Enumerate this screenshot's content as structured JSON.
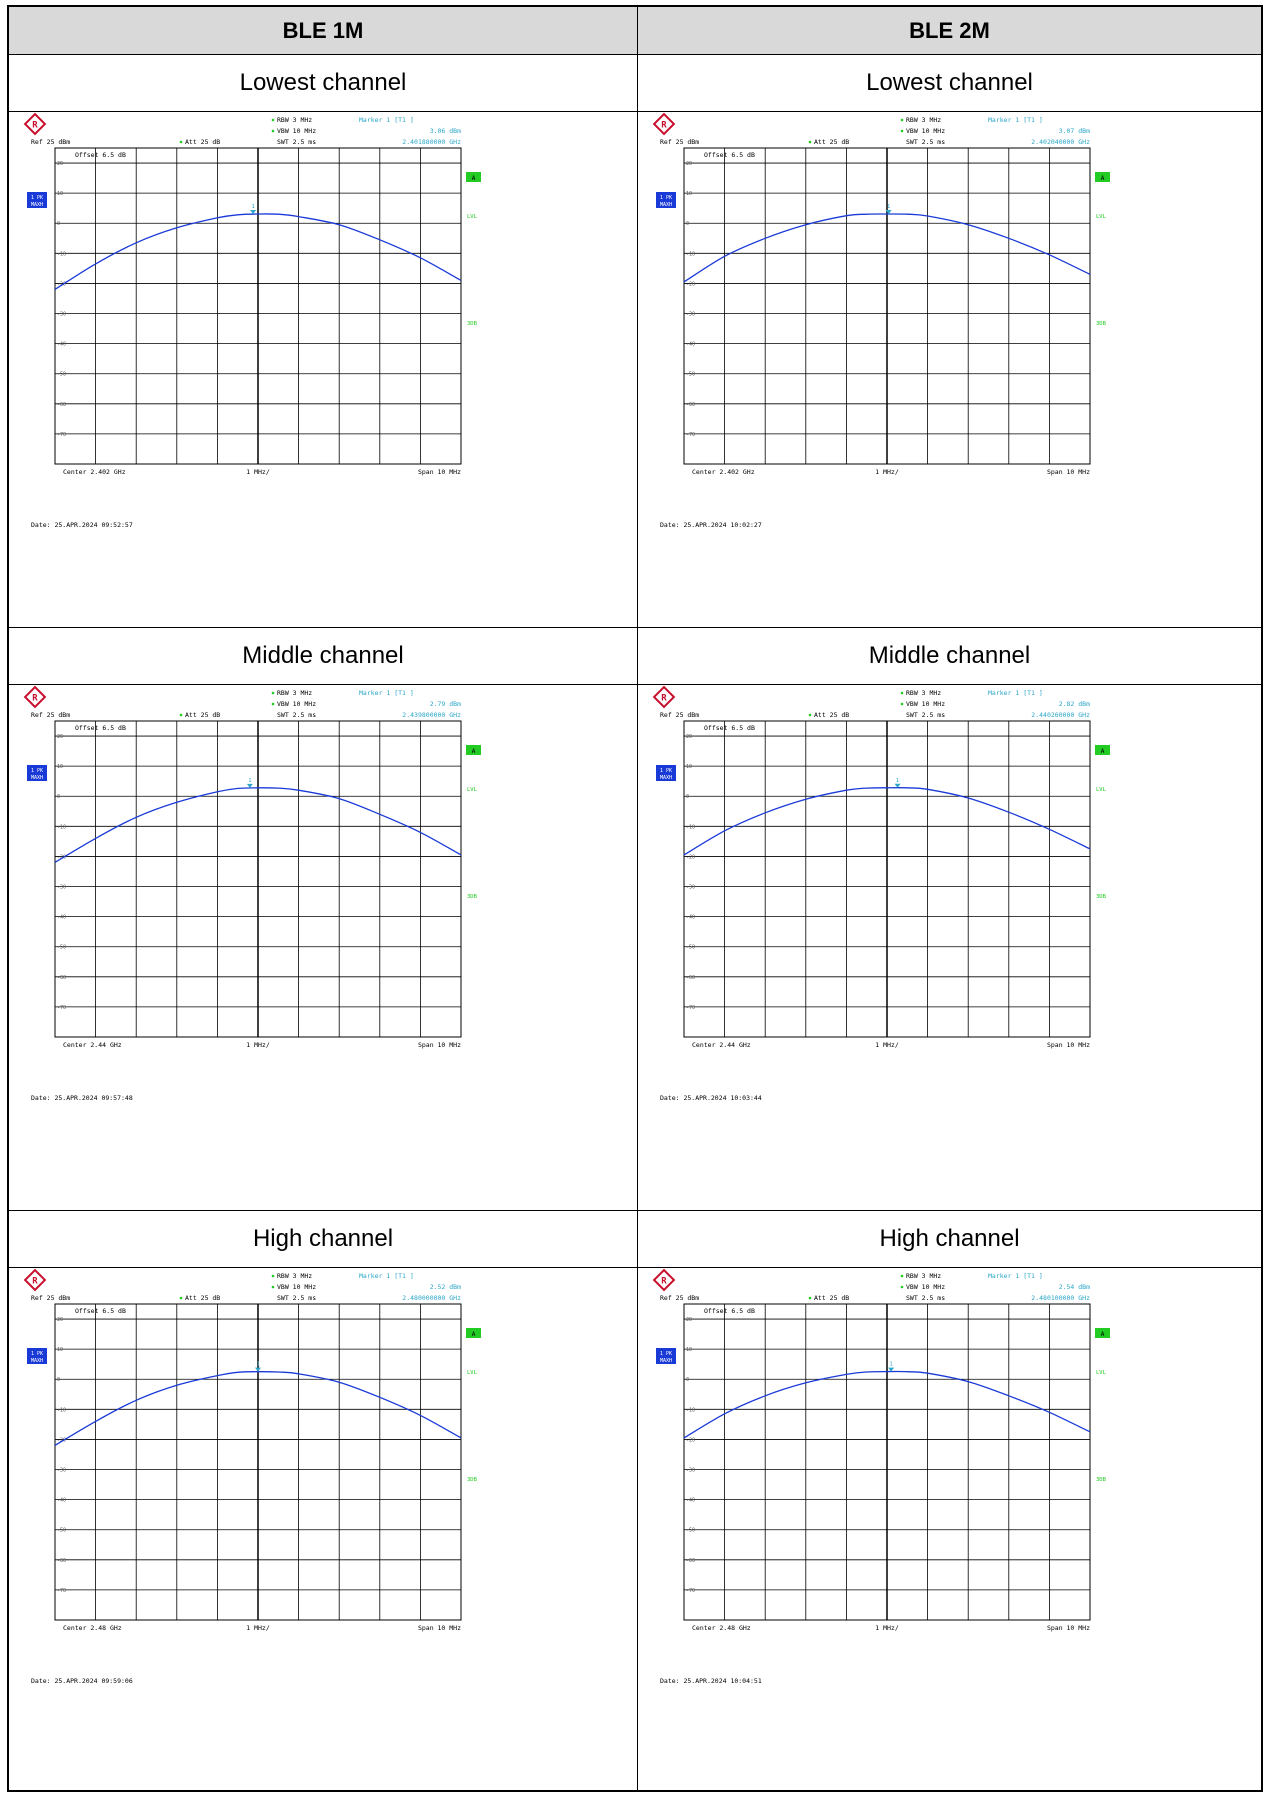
{
  "columns": [
    {
      "header": "BLE 1M"
    },
    {
      "header": "BLE 2M"
    }
  ],
  "rows": [
    {
      "label": "Lowest channel"
    },
    {
      "label": "Middle channel"
    },
    {
      "label": "High channel"
    }
  ],
  "colors": {
    "trace": "#1a3ad8",
    "marker": "#2aa6c8",
    "green": "#22cc22",
    "grid": "#000000",
    "badge": "#1a3ad8"
  },
  "icons": {
    "logo": "rohde-schwarz-logo-icon"
  },
  "chart_data": [
    {
      "type": "line",
      "row": 0,
      "col": 0,
      "ref": "Ref  25 dBm",
      "att": "Att  25 dB",
      "offset": "Offset  6.5 dB",
      "rbw": "RBW 3 MHz",
      "vbw": "VBW 10 MHz",
      "swt": "SWT 2.5 ms",
      "marker_title": "Marker 1 [T1 ]",
      "marker_level": "3.06 dBm",
      "marker_freq": "2.401880000 GHz",
      "center": "Center  2.402 GHz",
      "div": "1 MHz/",
      "span": "Span  10 MHz",
      "date": "Date: 25.APR.2024  09:52:57",
      "trace_label": "1 PK MAXH",
      "tag_a": "A",
      "tag_lvl": "LVL",
      "tag_3db": "3DB",
      "yticks": [
        "20",
        "10",
        "0",
        "-10",
        "-20",
        "-30",
        "-40",
        "-50",
        "-60",
        "-70"
      ],
      "ylim": [
        -80,
        25
      ],
      "xlim": [
        -5,
        5
      ],
      "x": [
        -5,
        -4,
        -3,
        -2,
        -1,
        -0.5,
        0,
        0.5,
        1,
        2,
        3,
        4,
        5
      ],
      "y": [
        -22,
        -13.5,
        -6.5,
        -1.5,
        1.8,
        2.8,
        3.06,
        3.0,
        2.2,
        -0.5,
        -5.5,
        -11.5,
        -19
      ],
      "marker_x": -0.12,
      "marker_y": 3.06
    },
    {
      "type": "line",
      "row": 0,
      "col": 1,
      "ref": "Ref  25 dBm",
      "att": "Att  25 dB",
      "offset": "Offset  6.5 dB",
      "rbw": "RBW 3 MHz",
      "vbw": "VBW 10 MHz",
      "swt": "SWT 2.5 ms",
      "marker_title": "Marker 1 [T1 ]",
      "marker_level": "3.07 dBm",
      "marker_freq": "2.402040000 GHz",
      "center": "Center  2.402 GHz",
      "div": "1 MHz/",
      "span": "Span  10 MHz",
      "date": "Date: 25.APR.2024  10:02:27",
      "trace_label": "1 PK MAXH",
      "tag_a": "A",
      "tag_lvl": "LVL",
      "tag_3db": "3DB",
      "yticks": [
        "20",
        "10",
        "0",
        "-10",
        "-20",
        "-30",
        "-40",
        "-50",
        "-60",
        "-70"
      ],
      "ylim": [
        -80,
        25
      ],
      "xlim": [
        -5,
        5
      ],
      "x": [
        -5,
        -4,
        -3,
        -2,
        -1,
        -0.5,
        0,
        0.5,
        1,
        2,
        3,
        4,
        5
      ],
      "y": [
        -19.5,
        -11,
        -5,
        -0.5,
        2.5,
        3.0,
        3.07,
        3.0,
        2.4,
        -0.5,
        -5,
        -10.5,
        -17
      ],
      "marker_x": 0.04,
      "marker_y": 3.07
    },
    {
      "type": "line",
      "row": 1,
      "col": 0,
      "ref": "Ref  25 dBm",
      "att": "Att  25 dB",
      "offset": "Offset  6.5 dB",
      "rbw": "RBW 3 MHz",
      "vbw": "VBW 10 MHz",
      "swt": "SWT 2.5 ms",
      "marker_title": "Marker 1 [T1 ]",
      "marker_level": "2.79 dBm",
      "marker_freq": "2.439800000 GHz",
      "center": "Center  2.44 GHz",
      "div": "1 MHz/",
      "span": "Span  10 MHz",
      "date": "Date: 25.APR.2024  09:57:48",
      "trace_label": "1 PK MAXH",
      "tag_a": "A",
      "tag_lvl": "LVL",
      "tag_3db": "3DB",
      "yticks": [
        "20",
        "10",
        "0",
        "-10",
        "-20",
        "-30",
        "-40",
        "-50",
        "-60",
        "-70"
      ],
      "ylim": [
        -80,
        25
      ],
      "xlim": [
        -5,
        5
      ],
      "x": [
        -5,
        -4,
        -3,
        -2,
        -1,
        -0.5,
        0,
        0.5,
        1,
        2,
        3,
        4,
        5
      ],
      "y": [
        -22,
        -14,
        -7,
        -2,
        1.5,
        2.6,
        2.79,
        2.7,
        2.0,
        -0.8,
        -6,
        -12,
        -19.5
      ],
      "marker_x": -0.2,
      "marker_y": 2.79
    },
    {
      "type": "line",
      "row": 1,
      "col": 1,
      "ref": "Ref  25 dBm",
      "att": "Att  25 dB",
      "offset": "Offset  6.5 dB",
      "rbw": "RBW 3 MHz",
      "vbw": "VBW 10 MHz",
      "swt": "SWT 2.5 ms",
      "marker_title": "Marker 1 [T1 ]",
      "marker_level": "2.82 dBm",
      "marker_freq": "2.440260000 GHz",
      "center": "Center  2.44 GHz",
      "div": "1 MHz/",
      "span": "Span  10 MHz",
      "date": "Date: 25.APR.2024  10:03:44",
      "trace_label": "1 PK MAXH",
      "tag_a": "A",
      "tag_lvl": "LVL",
      "tag_3db": "3DB",
      "yticks": [
        "20",
        "10",
        "0",
        "-10",
        "-20",
        "-30",
        "-40",
        "-50",
        "-60",
        "-70"
      ],
      "ylim": [
        -80,
        25
      ],
      "xlim": [
        -5,
        5
      ],
      "x": [
        -5,
        -4,
        -3,
        -2,
        -1,
        -0.5,
        0,
        0.5,
        1,
        2,
        3,
        4,
        5
      ],
      "y": [
        -19.5,
        -11.5,
        -5.5,
        -1,
        2.0,
        2.7,
        2.82,
        2.8,
        2.3,
        -0.6,
        -5.3,
        -11,
        -17.5
      ],
      "marker_x": 0.26,
      "marker_y": 2.82
    },
    {
      "type": "line",
      "row": 2,
      "col": 0,
      "ref": "Ref  25 dBm",
      "att": "Att  25 dB",
      "offset": "Offset  6.5 dB",
      "rbw": "RBW 3 MHz",
      "vbw": "VBW 10 MHz",
      "swt": "SWT 2.5 ms",
      "marker_title": "Marker 1 [T1 ]",
      "marker_level": "2.52 dBm",
      "marker_freq": "2.480000000 GHz",
      "center": "Center  2.48 GHz",
      "div": "1 MHz/",
      "span": "Span  10 MHz",
      "date": "Date: 25.APR.2024  09:59:06",
      "trace_label": "1 PK MAXH",
      "tag_a": "A",
      "tag_lvl": "LVL",
      "tag_3db": "3DB",
      "yticks": [
        "20",
        "10",
        "0",
        "-10",
        "-20",
        "-30",
        "-40",
        "-50",
        "-60",
        "-70"
      ],
      "ylim": [
        -80,
        25
      ],
      "xlim": [
        -5,
        5
      ],
      "x": [
        -5,
        -4,
        -3,
        -2,
        -1,
        -0.5,
        0,
        0.5,
        1,
        2,
        3,
        4,
        5
      ],
      "y": [
        -22,
        -14,
        -7,
        -2,
        1.2,
        2.3,
        2.52,
        2.4,
        1.8,
        -1,
        -6,
        -12,
        -19.5
      ],
      "marker_x": 0.0,
      "marker_y": 2.52
    },
    {
      "type": "line",
      "row": 2,
      "col": 1,
      "ref": "Ref  25 dBm",
      "att": "Att  25 dB",
      "offset": "Offset  6.5 dB",
      "rbw": "RBW 3 MHz",
      "vbw": "VBW 10 MHz",
      "swt": "SWT 2.5 ms",
      "marker_title": "Marker 1 [T1 ]",
      "marker_level": "2.54 dBm",
      "marker_freq": "2.480100000 GHz",
      "center": "Center  2.48 GHz",
      "div": "1 MHz/",
      "span": "Span  10 MHz",
      "date": "Date: 25.APR.2024  10:04:51",
      "trace_label": "1 PK MAXH",
      "tag_a": "A",
      "tag_lvl": "LVL",
      "tag_3db": "3DB",
      "yticks": [
        "20",
        "10",
        "0",
        "-10",
        "-20",
        "-30",
        "-40",
        "-50",
        "-60",
        "-70"
      ],
      "ylim": [
        -80,
        25
      ],
      "xlim": [
        -5,
        5
      ],
      "x": [
        -5,
        -4,
        -3,
        -2,
        -1,
        -0.5,
        0,
        0.5,
        1,
        2,
        3,
        4,
        5
      ],
      "y": [
        -19.5,
        -11.5,
        -5.5,
        -1.2,
        1.6,
        2.4,
        2.54,
        2.5,
        2.0,
        -0.8,
        -5.5,
        -11,
        -17.5
      ],
      "marker_x": 0.1,
      "marker_y": 2.54
    }
  ]
}
